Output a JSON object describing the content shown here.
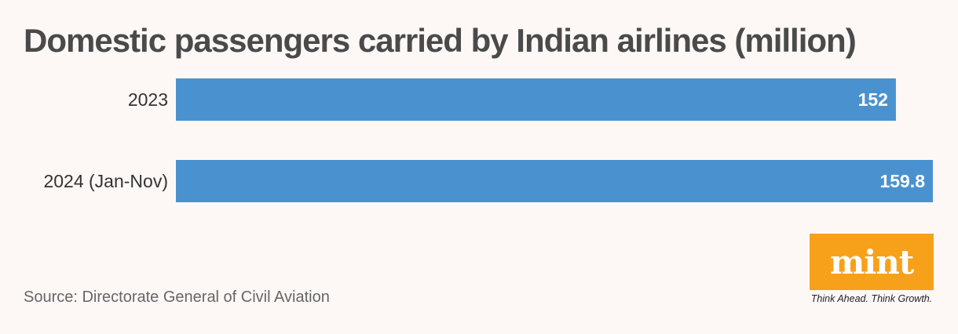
{
  "chart_data": {
    "type": "bar",
    "orientation": "horizontal",
    "title": "Domestic passengers carried by Indian airlines (million)",
    "categories": [
      "2023",
      "2024 (Jan-Nov)"
    ],
    "values": [
      152,
      159.8
    ],
    "value_labels": [
      "152",
      "159.8"
    ],
    "xlim": [
      0,
      159.8
    ],
    "grid": false,
    "bar_color": "#4a92cf",
    "value_label_color": "#ffffff"
  },
  "source": "Source: Directorate General of Civil Aviation",
  "logo": {
    "text": "mint",
    "tagline": "Think Ahead. Think Growth.",
    "color": "#f7a11a"
  }
}
